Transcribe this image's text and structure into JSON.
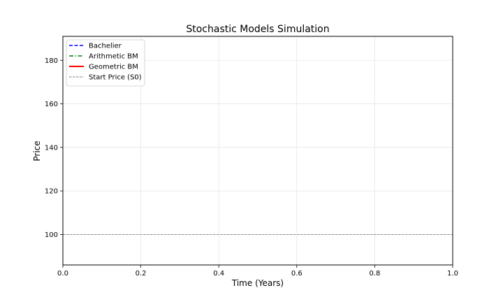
{
  "chart_data": {
    "type": "line",
    "title": "Stochastic Models Simulation",
    "xlabel": "Time (Years)",
    "ylabel": "Price",
    "xlim": [
      0.0,
      1.0
    ],
    "ylim": [
      86,
      191
    ],
    "x_ticks": [
      0.0,
      0.2,
      0.4,
      0.6,
      0.8,
      1.0
    ],
    "x_tick_labels": [
      "0.0",
      "0.2",
      "0.4",
      "0.6",
      "0.8",
      "1.0"
    ],
    "y_ticks": [
      100,
      120,
      140,
      160,
      180
    ],
    "y_tick_labels": [
      "100",
      "120",
      "140",
      "160",
      "180"
    ],
    "grid": true,
    "legend_position": "top-left",
    "series": [
      {
        "name": "Bachelier",
        "color": "#0000ff",
        "style": "dashed",
        "x": [],
        "y": []
      },
      {
        "name": "Arithmetic BM",
        "color": "#008000",
        "style": "dashdot",
        "x": [],
        "y": []
      },
      {
        "name": "Geometric BM",
        "color": "#ff0000",
        "style": "solid",
        "x": [],
        "y": []
      },
      {
        "name": "Start Price (S0)",
        "color": "#808080",
        "style": "dashed-thin",
        "x": [
          0.0,
          1.0
        ],
        "y": [
          100,
          100
        ]
      }
    ]
  }
}
